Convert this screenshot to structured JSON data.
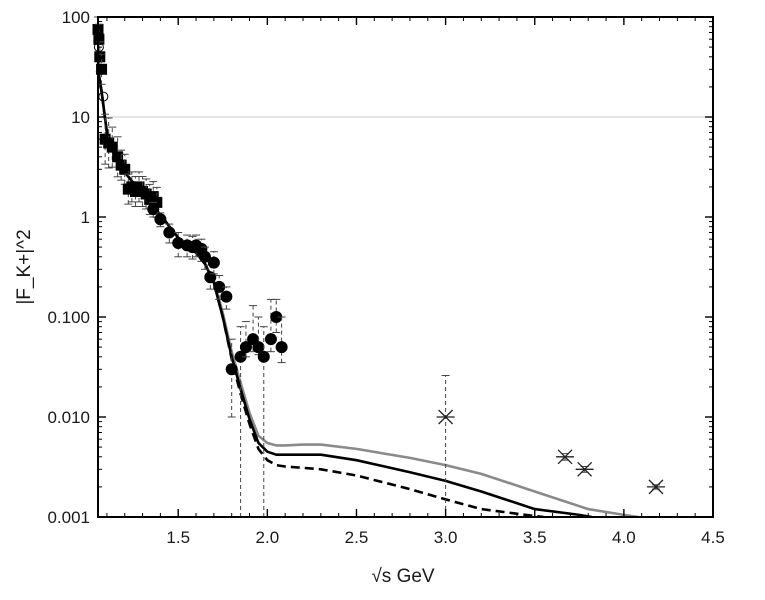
{
  "chart_data": {
    "type": "scatter",
    "title": "",
    "xlabel": "√s  GeV",
    "ylabel": "|F_K+|^2",
    "y_scale": "log",
    "xlim": [
      1.05,
      4.5
    ],
    "ylim": [
      0.001,
      100
    ],
    "x_ticks": [
      1.5,
      2.0,
      2.5,
      3.0,
      3.5,
      4.0,
      4.5
    ],
    "x_tick_labels": [
      "1.5",
      "2.0",
      "2.5",
      "3.0",
      "3.5",
      "4.0",
      "4.5"
    ],
    "y_ticks": [
      0.001,
      0.01,
      0.1,
      1,
      10,
      100
    ],
    "y_tick_labels": [
      "0.001",
      "0.010",
      "0.100",
      "1",
      "10",
      "100"
    ],
    "gridlines": {
      "horizontal": [
        10
      ],
      "vertical": []
    },
    "legend": "none",
    "colors": {
      "line_black": "#000000",
      "line_gray": "#8a8a8a",
      "marker": "#000000",
      "errorbar": "#444444",
      "grid": "#cccccc"
    },
    "series": [
      {
        "style": "solid-gray",
        "x": [
          1.05,
          1.07,
          1.1,
          1.15,
          1.2,
          1.3,
          1.4,
          1.5,
          1.6,
          1.65,
          1.7,
          1.75,
          1.8,
          1.85,
          1.9,
          1.95,
          2.0,
          2.05,
          2.1,
          2.2,
          2.3,
          2.5,
          2.8,
          3.0,
          3.2,
          3.5,
          3.8,
          4.0,
          4.08
        ],
        "y": [
          30,
          18,
          7,
          4,
          2.8,
          1.7,
          1.05,
          0.62,
          0.44,
          0.34,
          0.23,
          0.11,
          0.045,
          0.022,
          0.011,
          0.0065,
          0.0055,
          0.0052,
          0.0052,
          0.0053,
          0.0053,
          0.0048,
          0.0039,
          0.0033,
          0.0027,
          0.0018,
          0.0012,
          0.00105,
          0.001
        ]
      },
      {
        "style": "solid-black",
        "x": [
          1.05,
          1.07,
          1.1,
          1.15,
          1.2,
          1.3,
          1.4,
          1.5,
          1.6,
          1.65,
          1.7,
          1.75,
          1.8,
          1.85,
          1.9,
          1.95,
          2.0,
          2.05,
          2.1,
          2.2,
          2.3,
          2.5,
          2.8,
          3.0,
          3.2,
          3.5,
          3.75,
          3.82
        ],
        "y": [
          30,
          18,
          7,
          4,
          2.8,
          1.7,
          1.05,
          0.62,
          0.44,
          0.34,
          0.22,
          0.1,
          0.04,
          0.019,
          0.0095,
          0.0055,
          0.0045,
          0.0042,
          0.0042,
          0.0042,
          0.0042,
          0.0037,
          0.0028,
          0.0023,
          0.0018,
          0.0012,
          0.00105,
          0.001
        ]
      },
      {
        "style": "dashed-black",
        "x": [
          1.05,
          1.07,
          1.1,
          1.15,
          1.2,
          1.3,
          1.4,
          1.5,
          1.6,
          1.65,
          1.7,
          1.75,
          1.8,
          1.85,
          1.9,
          1.95,
          2.0,
          2.05,
          2.1,
          2.2,
          2.3,
          2.5,
          2.8,
          3.0,
          3.2,
          3.45,
          3.55
        ],
        "y": [
          30,
          18,
          7,
          4,
          2.8,
          1.7,
          1.05,
          0.62,
          0.44,
          0.34,
          0.22,
          0.1,
          0.038,
          0.017,
          0.0085,
          0.0048,
          0.0037,
          0.0033,
          0.0032,
          0.0031,
          0.003,
          0.0026,
          0.0019,
          0.0015,
          0.0012,
          0.00105,
          0.001
        ]
      },
      {
        "style": "markers-square",
        "x": [
          1.05,
          1.055,
          1.06,
          1.07,
          1.09,
          1.11,
          1.13,
          1.16,
          1.18,
          1.2,
          1.22,
          1.24,
          1.26,
          1.28,
          1.3,
          1.32,
          1.34,
          1.36,
          1.38
        ],
        "y": [
          75,
          60,
          40,
          30,
          6,
          5.5,
          5,
          4,
          3.3,
          3,
          1.9,
          2,
          1.8,
          2,
          1.8,
          1.7,
          1.5,
          1.6,
          1.4
        ],
        "err": [
          0.15,
          0.15,
          0.15,
          0.15,
          0.25,
          0.25,
          0.2,
          0.2,
          0.15,
          0.15,
          0.15,
          0.15,
          0.15,
          0.15,
          0.15,
          0.15,
          0.15,
          0.15,
          0.15
        ]
      },
      {
        "style": "markers-circle-open",
        "x": [
          1.055,
          1.07,
          1.08
        ],
        "y": [
          50,
          30,
          16
        ]
      },
      {
        "style": "markers-circle-filled",
        "x": [
          1.36,
          1.4,
          1.45,
          1.5,
          1.55,
          1.58,
          1.6,
          1.63,
          1.65,
          1.68,
          1.7,
          1.73,
          1.77,
          1.8,
          1.85,
          1.88,
          1.92,
          1.95,
          1.98,
          2.02,
          2.05,
          2.08
        ],
        "y": [
          1.2,
          0.95,
          0.7,
          0.55,
          0.52,
          0.5,
          0.52,
          0.48,
          0.4,
          0.25,
          0.35,
          0.2,
          0.16,
          0.03,
          0.04,
          0.05,
          0.06,
          0.05,
          0.04,
          0.06,
          0.1,
          0.05
        ],
        "err_low": [
          1.0,
          0.8,
          0.55,
          0.4,
          0.4,
          0.38,
          0.4,
          0.36,
          0.3,
          0.19,
          0.27,
          0.15,
          0.12,
          0.01,
          0.0,
          0.04,
          0.045,
          0.042,
          0.0,
          0.045,
          0.07,
          0.035
        ],
        "err_high": [
          1.4,
          1.1,
          0.85,
          0.7,
          0.66,
          0.64,
          0.66,
          0.6,
          0.5,
          0.33,
          0.45,
          0.26,
          0.2,
          0.06,
          0.08,
          0.09,
          0.13,
          0.1,
          0.08,
          0.15,
          0.15,
          0.1
        ]
      },
      {
        "style": "markers-cross",
        "x": [
          3.0,
          3.67,
          3.78,
          4.18
        ],
        "y": [
          0.01,
          0.004,
          0.003,
          0.002
        ],
        "err_low": [
          0.0,
          0.0037,
          0.0028,
          0.0019
        ],
        "err_high": [
          0.026,
          0.0043,
          0.0032,
          0.0021
        ]
      }
    ]
  }
}
